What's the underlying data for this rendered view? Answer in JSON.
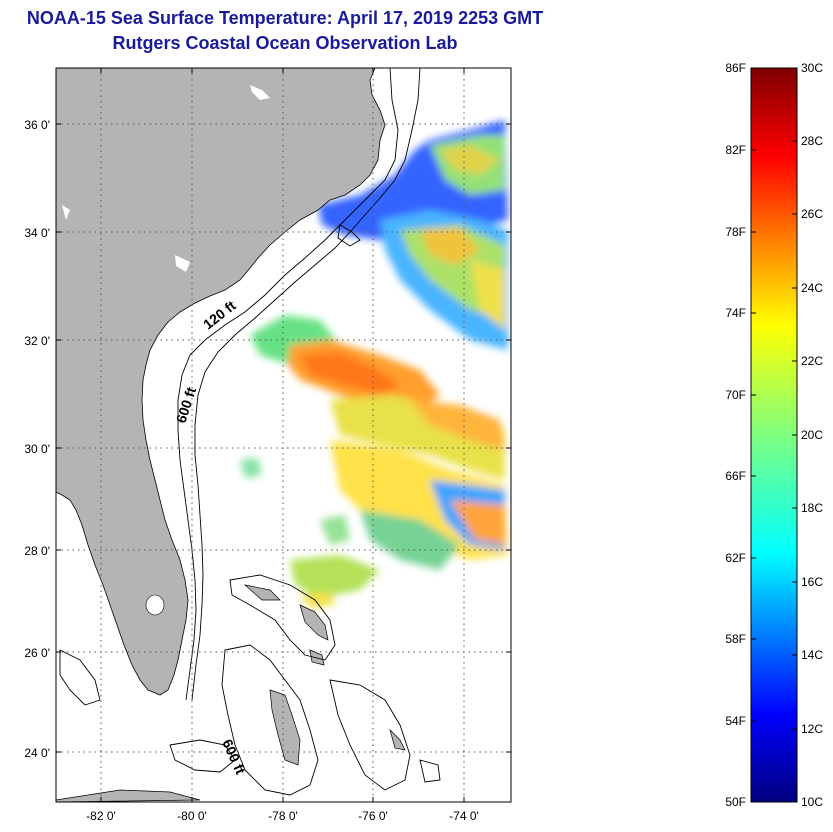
{
  "header": {
    "title_line1": "NOAA-15 Sea Surface Temperature:  April 17, 2019 2253 GMT",
    "title_line2": "Rutgers Coastal Ocean Observation Lab"
  },
  "map": {
    "lat_ticks": [
      "36 0'",
      "34 0'",
      "32 0'",
      "30 0'",
      "28 0'",
      "26 0'",
      "24 0'"
    ],
    "lon_ticks": [
      "-82 0'",
      "-80 0'",
      "-78 0'",
      "-76 0'",
      "-74 0'"
    ],
    "contour_labels": [
      "120 ft",
      "600 ft",
      "600 ft"
    ],
    "colors": {
      "land": "#b4b4b4",
      "ocean": "#ffffff",
      "grid": "#555555"
    }
  },
  "colorbar": {
    "fahrenheit_labels": [
      "86F",
      "82F",
      "78F",
      "74F",
      "70F",
      "66F",
      "62F",
      "58F",
      "54F",
      "50F"
    ],
    "celsius_labels": [
      "30C",
      "28C",
      "26C",
      "24C",
      "22C",
      "20C",
      "18C",
      "16C",
      "14C",
      "12C",
      "10C"
    ],
    "range_c": [
      10,
      30
    ],
    "colormap": "jet"
  }
}
